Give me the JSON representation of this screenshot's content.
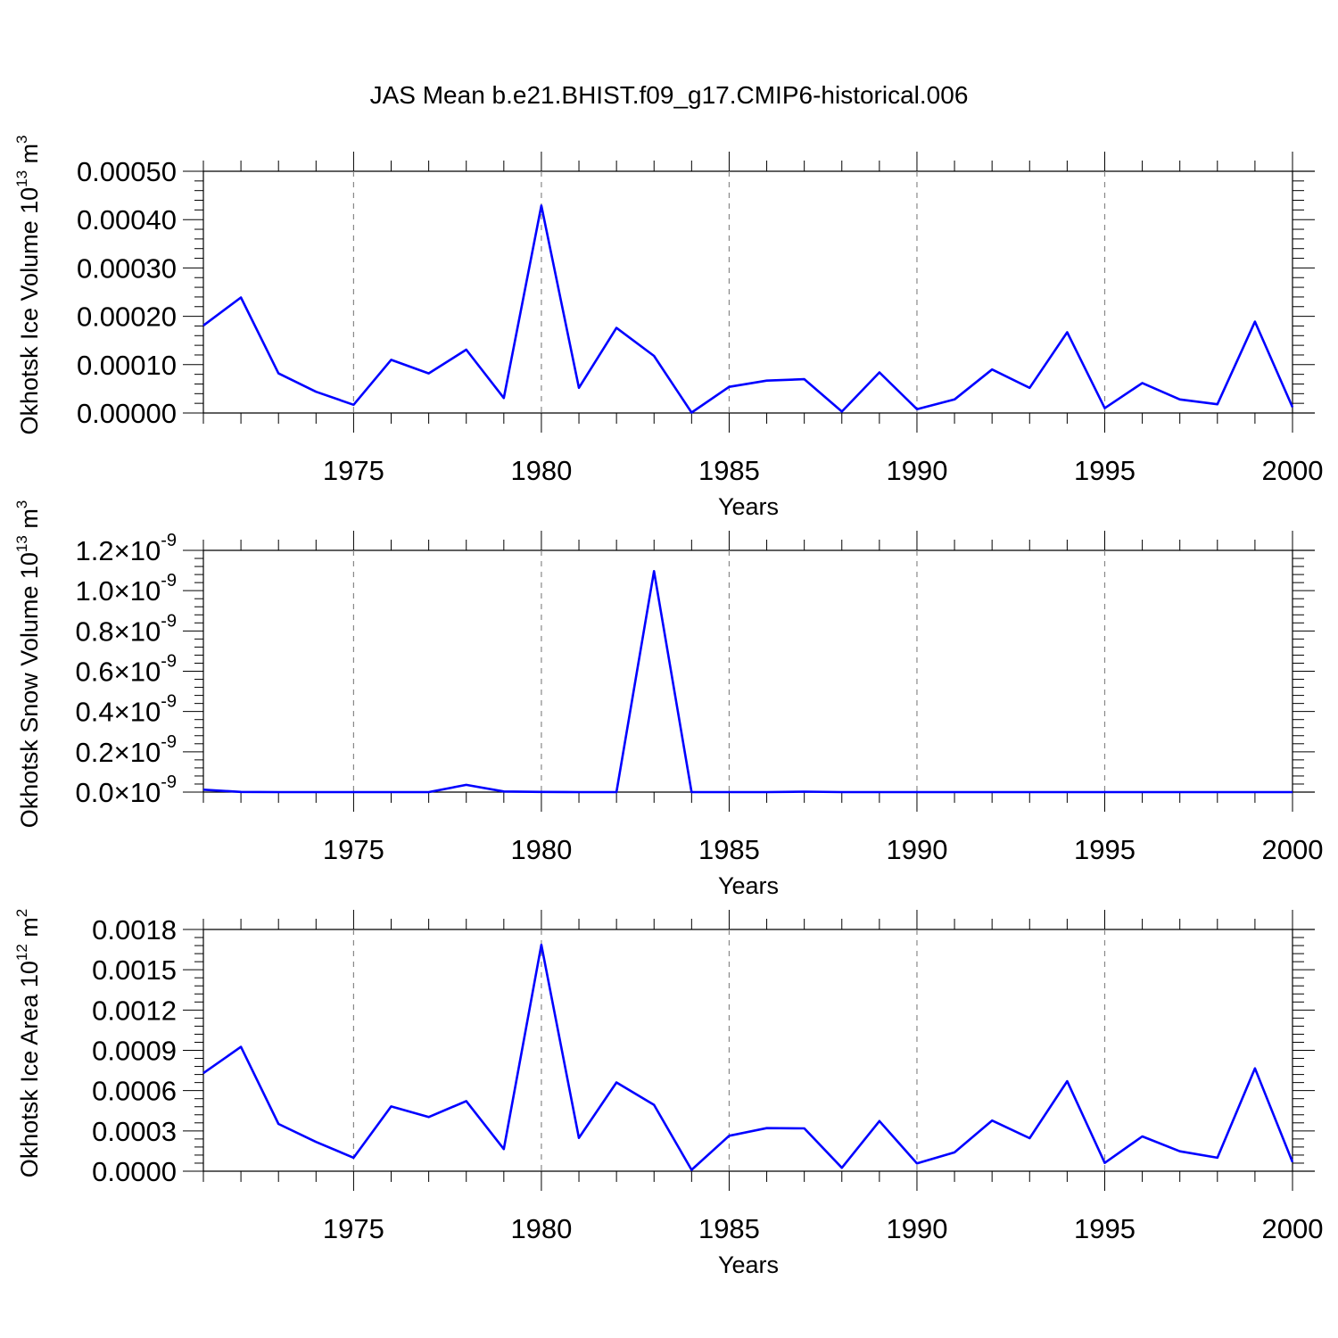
{
  "figure_title": "JAS Mean b.e21.BHIST.f09_g17.CMIP6-historical.006",
  "line_color": "#0000ff",
  "grid_color": "#888888",
  "chart_data": [
    {
      "type": "line",
      "ylabel": "Okhotsk Ice Volume 10",
      "ylabel_exp": "13",
      "ylabel_unit": " m",
      "ylabel_unit_exp": "3",
      "xlabel": "Years",
      "xlim": [
        1971,
        2000
      ],
      "ylim": [
        0,
        0.0005
      ],
      "x_ticks": [
        "1975",
        "1980",
        "1985",
        "1990",
        "1995",
        "2000"
      ],
      "y_ticks": [
        {
          "value": 0.0,
          "label": "0.00000"
        },
        {
          "value": 0.0001,
          "label": "0.00010"
        },
        {
          "value": 0.0002,
          "label": "0.00020"
        },
        {
          "value": 0.0003,
          "label": "0.00030"
        },
        {
          "value": 0.0004,
          "label": "0.00040"
        },
        {
          "value": 0.0005,
          "label": "0.00050"
        }
      ],
      "x": [
        1971,
        1972,
        1973,
        1974,
        1975,
        1976,
        1977,
        1978,
        1979,
        1980,
        1981,
        1982,
        1983,
        1984,
        1985,
        1986,
        1987,
        1988,
        1989,
        1990,
        1991,
        1992,
        1993,
        1994,
        1995,
        1996,
        1997,
        1998,
        1999,
        2000
      ],
      "values": [
        0.000181,
        0.000239,
        8.2e-05,
        4.4e-05,
        1.7e-05,
        0.00011,
        8.2e-05,
        0.000131,
        3.1e-05,
        0.000429,
        5.2e-05,
        0.000176,
        0.000118,
        1e-06,
        5.4e-05,
        6.7e-05,
        7e-05,
        3e-06,
        8.4e-05,
        8e-06,
        2.8e-05,
        9e-05,
        5.2e-05,
        0.000167,
        1e-05,
        6.2e-05,
        2.8e-05,
        1.8e-05,
        0.000189,
        1.2e-05
      ],
      "grid_x": [
        1975,
        1980,
        1985,
        1990,
        1995
      ]
    },
    {
      "type": "line",
      "ylabel": "Okhotsk Snow Volume 10",
      "ylabel_exp": "13",
      "ylabel_unit": " m",
      "ylabel_unit_exp": "3",
      "xlabel": "Years",
      "xlim": [
        1971,
        2000
      ],
      "ylim": [
        0,
        1.2e-09
      ],
      "x_ticks": [
        "1975",
        "1980",
        "1985",
        "1990",
        "1995",
        "2000"
      ],
      "y_ticks": [
        {
          "value": 0.0,
          "label": "0.0",
          "sci": "×10",
          "exp": "-9"
        },
        {
          "value": 2e-10,
          "label": "0.2",
          "sci": "×10",
          "exp": "-9"
        },
        {
          "value": 4e-10,
          "label": "0.4",
          "sci": "×10",
          "exp": "-9"
        },
        {
          "value": 6e-10,
          "label": "0.6",
          "sci": "×10",
          "exp": "-9"
        },
        {
          "value": 8e-10,
          "label": "0.8",
          "sci": "×10",
          "exp": "-9"
        },
        {
          "value": 1e-09,
          "label": "1.0",
          "sci": "×10",
          "exp": "-9"
        },
        {
          "value": 1.2e-09,
          "label": "1.2",
          "sci": "×10",
          "exp": "-9"
        }
      ],
      "x": [
        1971,
        1972,
        1973,
        1974,
        1975,
        1976,
        1977,
        1978,
        1979,
        1980,
        1981,
        1982,
        1983,
        1984,
        1985,
        1986,
        1987,
        1988,
        1989,
        1990,
        1991,
        1992,
        1993,
        1994,
        1995,
        1996,
        1997,
        1998,
        1999,
        2000
      ],
      "values": [
        1.2e-11,
        1e-12,
        0,
        0,
        0,
        0,
        0,
        3.6e-11,
        3e-12,
        1e-12,
        0,
        0,
        1.097e-09,
        0,
        0,
        0,
        2e-12,
        0,
        0,
        0,
        0,
        0,
        0,
        0,
        0,
        0,
        0,
        0,
        0,
        0
      ],
      "grid_x": [
        1975,
        1980,
        1985,
        1990,
        1995
      ]
    },
    {
      "type": "line",
      "ylabel": "Okhotsk Ice Area 10",
      "ylabel_exp": "12",
      "ylabel_unit": " m",
      "ylabel_unit_exp": "2",
      "xlabel": "Years",
      "xlim": [
        1971,
        2000
      ],
      "ylim": [
        0,
        0.0018
      ],
      "x_ticks": [
        "1975",
        "1980",
        "1985",
        "1990",
        "1995",
        "2000"
      ],
      "y_ticks": [
        {
          "value": 0.0,
          "label": "0.0000"
        },
        {
          "value": 0.0003,
          "label": "0.0003"
        },
        {
          "value": 0.0006,
          "label": "0.0006"
        },
        {
          "value": 0.0009,
          "label": "0.0009"
        },
        {
          "value": 0.0012,
          "label": "0.0012"
        },
        {
          "value": 0.0015,
          "label": "0.0015"
        },
        {
          "value": 0.0018,
          "label": "0.0018"
        }
      ],
      "x": [
        1971,
        1972,
        1973,
        1974,
        1975,
        1976,
        1977,
        1978,
        1979,
        1980,
        1981,
        1982,
        1983,
        1984,
        1985,
        1986,
        1987,
        1988,
        1989,
        1990,
        1991,
        1992,
        1993,
        1994,
        1995,
        1996,
        1997,
        1998,
        1999,
        2000
      ],
      "values": [
        0.00073,
        0.000926,
        0.000352,
        0.000218,
        0.0001,
        0.000482,
        0.000403,
        0.000522,
        0.000165,
        0.001686,
        0.000248,
        0.000661,
        0.000494,
        1e-05,
        0.000264,
        0.000321,
        0.000319,
        2.5e-05,
        0.000373,
        5.8e-05,
        0.00014,
        0.000377,
        0.000246,
        0.00067,
        6.2e-05,
        0.000259,
        0.000148,
        0.0001,
        0.000766,
        6.8e-05
      ],
      "grid_x": [
        1975,
        1980,
        1985,
        1990,
        1995
      ]
    }
  ]
}
